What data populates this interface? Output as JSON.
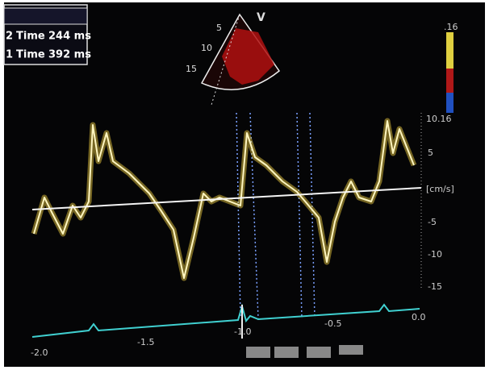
{
  "measurements": [
    {
      "index": "2",
      "label": "Time",
      "value": "244 ms"
    },
    {
      "index": "1",
      "label": "Time",
      "value": "392 ms"
    }
  ],
  "sector": {
    "marker": "V",
    "depths": [
      "5",
      "10",
      "15"
    ]
  },
  "color_scale": {
    "top": ".16"
  },
  "velocity_scale": {
    "ticks": [
      "10.16",
      "5",
      "[cm/s]",
      "-5",
      "-10",
      "-15"
    ]
  },
  "time_axis": {
    "ticks": [
      "-2.0",
      "-1.5",
      "-1.0",
      "-0.5",
      "0.0"
    ]
  }
}
